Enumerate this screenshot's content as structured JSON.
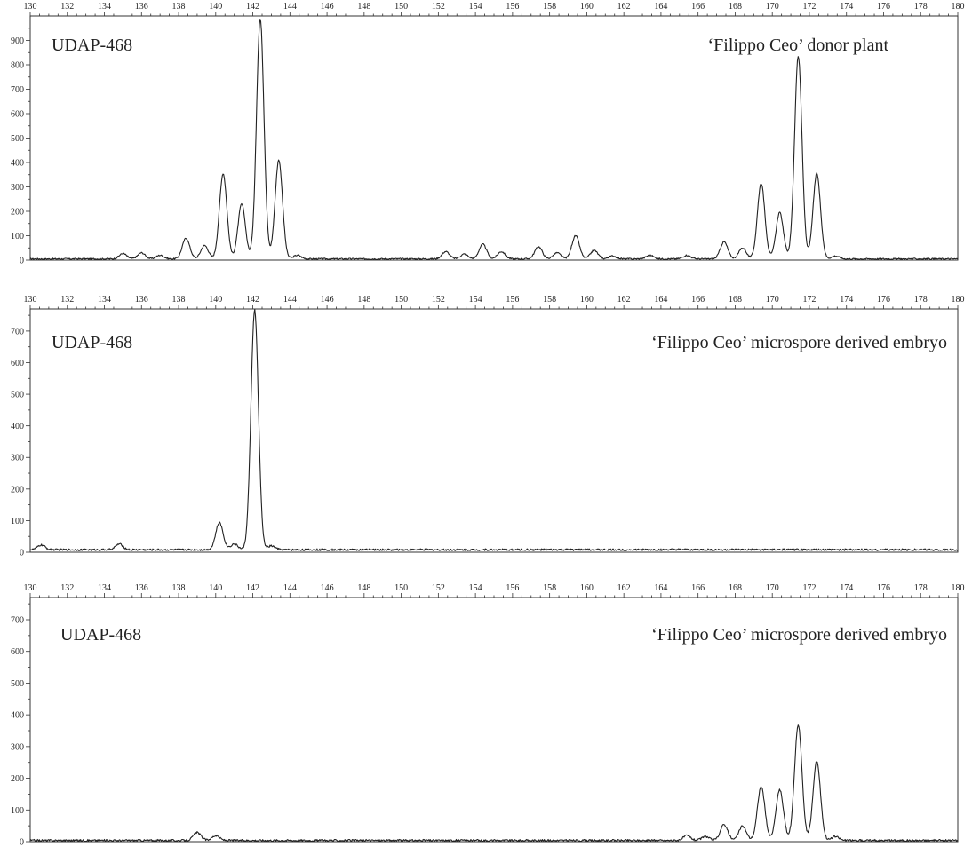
{
  "chart_data": [
    {
      "type": "line",
      "marker": "UDAP-468",
      "sample": "‘Filippo Ceo’ donor plant",
      "xlim": [
        130,
        180
      ],
      "ylim": [
        0,
        1000
      ],
      "xticks": [
        130,
        132,
        134,
        136,
        138,
        140,
        142,
        144,
        146,
        148,
        150,
        152,
        154,
        156,
        158,
        160,
        162,
        164,
        166,
        168,
        170,
        172,
        174,
        176,
        178,
        180
      ],
      "yticks": [
        0,
        100,
        200,
        300,
        400,
        500,
        600,
        700,
        800,
        900
      ],
      "baseline": 5,
      "peaks": [
        {
          "x": 135.0,
          "y": 22
        },
        {
          "x": 136.0,
          "y": 25
        },
        {
          "x": 137.0,
          "y": 15
        },
        {
          "x": 138.4,
          "y": 85
        },
        {
          "x": 139.4,
          "y": 55
        },
        {
          "x": 140.4,
          "y": 350
        },
        {
          "x": 141.4,
          "y": 225
        },
        {
          "x": 142.4,
          "y": 985
        },
        {
          "x": 143.4,
          "y": 405
        },
        {
          "x": 144.4,
          "y": 15
        },
        {
          "x": 152.4,
          "y": 30
        },
        {
          "x": 153.4,
          "y": 20
        },
        {
          "x": 154.4,
          "y": 60
        },
        {
          "x": 155.4,
          "y": 30
        },
        {
          "x": 157.4,
          "y": 50
        },
        {
          "x": 158.4,
          "y": 25
        },
        {
          "x": 159.4,
          "y": 95
        },
        {
          "x": 160.4,
          "y": 35
        },
        {
          "x": 161.4,
          "y": 12
        },
        {
          "x": 163.4,
          "y": 15
        },
        {
          "x": 165.4,
          "y": 15
        },
        {
          "x": 167.4,
          "y": 70
        },
        {
          "x": 168.4,
          "y": 45
        },
        {
          "x": 169.4,
          "y": 310
        },
        {
          "x": 170.4,
          "y": 190
        },
        {
          "x": 171.4,
          "y": 830
        },
        {
          "x": 172.4,
          "y": 350
        },
        {
          "x": 173.4,
          "y": 12
        }
      ]
    },
    {
      "type": "line",
      "marker": "UDAP-468",
      "sample": "‘Filippo Ceo’ microspore derived embryo",
      "xlim": [
        130,
        180
      ],
      "ylim": [
        0,
        770
      ],
      "xticks": [
        130,
        132,
        134,
        136,
        138,
        140,
        142,
        144,
        146,
        148,
        150,
        152,
        154,
        156,
        158,
        160,
        162,
        164,
        166,
        168,
        170,
        172,
        174,
        176,
        178,
        180
      ],
      "yticks": [
        0,
        100,
        200,
        300,
        400,
        500,
        600,
        700
      ],
      "baseline": 8,
      "peaks": [
        {
          "x": 130.6,
          "y": 15
        },
        {
          "x": 134.8,
          "y": 18
        },
        {
          "x": 140.2,
          "y": 85
        },
        {
          "x": 141.0,
          "y": 18
        },
        {
          "x": 142.1,
          "y": 760
        },
        {
          "x": 143.0,
          "y": 12
        }
      ]
    },
    {
      "type": "line",
      "marker": "UDAP-468",
      "sample": "‘Filippo Ceo’ microspore derived embryo",
      "xlim": [
        130,
        180
      ],
      "ylim": [
        0,
        770
      ],
      "xticks": [
        130,
        132,
        134,
        136,
        138,
        140,
        142,
        144,
        146,
        148,
        150,
        152,
        154,
        156,
        158,
        160,
        162,
        164,
        166,
        168,
        170,
        172,
        174,
        176,
        178,
        180
      ],
      "yticks": [
        0,
        100,
        200,
        300,
        400,
        500,
        600,
        700
      ],
      "baseline": 4,
      "peaks": [
        {
          "x": 139.0,
          "y": 25
        },
        {
          "x": 140.0,
          "y": 15
        },
        {
          "x": 165.4,
          "y": 15
        },
        {
          "x": 166.4,
          "y": 12
        },
        {
          "x": 167.4,
          "y": 50
        },
        {
          "x": 168.4,
          "y": 45
        },
        {
          "x": 169.4,
          "y": 170
        },
        {
          "x": 170.4,
          "y": 160
        },
        {
          "x": 171.4,
          "y": 365
        },
        {
          "x": 172.4,
          "y": 250
        },
        {
          "x": 173.4,
          "y": 12
        }
      ]
    }
  ]
}
